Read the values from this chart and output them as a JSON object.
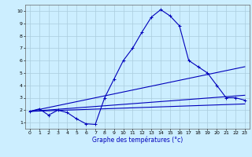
{
  "xlabel": "Graphe des températures (°c)",
  "background_color": "#cceeff",
  "grid_color": "#aaccdd",
  "line_color": "#0000bb",
  "x_ticks": [
    0,
    1,
    2,
    3,
    4,
    5,
    6,
    7,
    8,
    9,
    10,
    11,
    12,
    13,
    14,
    15,
    16,
    17,
    18,
    19,
    20,
    21,
    22,
    23
  ],
  "y_ticks": [
    1,
    2,
    3,
    4,
    5,
    6,
    7,
    8,
    9,
    10
  ],
  "ylim": [
    0.5,
    10.5
  ],
  "xlim": [
    -0.5,
    23.5
  ],
  "series": [
    {
      "x": [
        0,
        1,
        2,
        3,
        4,
        5,
        6,
        7,
        8,
        9,
        10,
        11,
        12,
        13,
        14,
        15,
        16,
        17,
        18,
        19,
        20,
        21,
        22,
        23
      ],
      "y": [
        1.9,
        2.1,
        1.6,
        2.0,
        1.8,
        1.3,
        0.9,
        0.85,
        3.0,
        4.5,
        6.0,
        7.0,
        8.3,
        9.5,
        10.1,
        9.6,
        8.8,
        6.0,
        5.5,
        5.0,
        4.0,
        3.0,
        3.0,
        2.8
      ],
      "marker": "+",
      "linestyle": "-"
    },
    {
      "x": [
        0,
        23
      ],
      "y": [
        1.9,
        2.5
      ],
      "marker": null,
      "linestyle": "-"
    },
    {
      "x": [
        0,
        23
      ],
      "y": [
        1.9,
        3.2
      ],
      "marker": null,
      "linestyle": "-"
    },
    {
      "x": [
        0,
        23
      ],
      "y": [
        1.9,
        5.5
      ],
      "marker": null,
      "linestyle": "-"
    }
  ]
}
